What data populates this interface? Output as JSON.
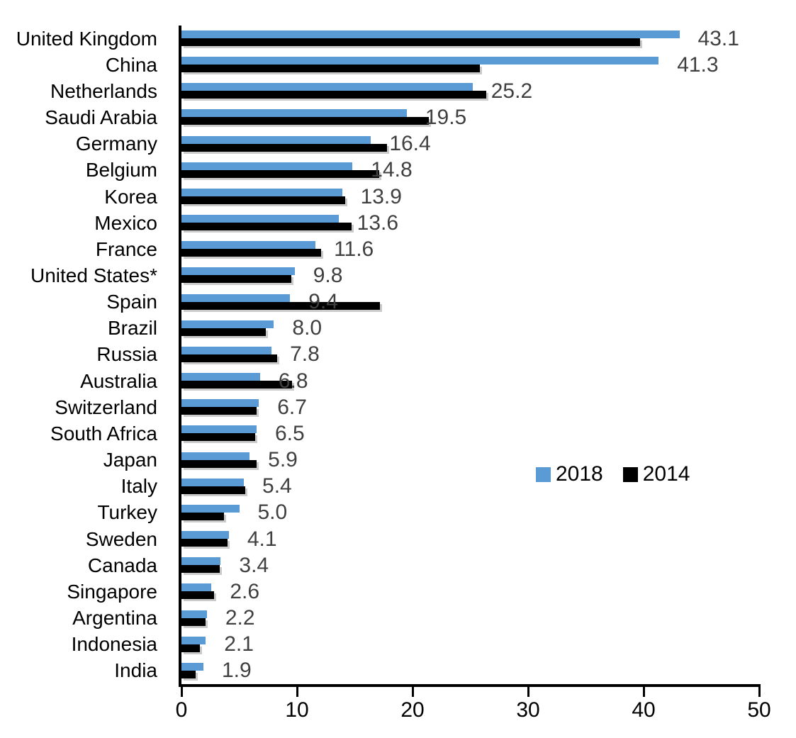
{
  "chart": {
    "colors": {
      "series_2018": "#5B9BD5",
      "series_2014": "#000000",
      "value_label": "#404040",
      "axis": "#000000",
      "text": "#000000",
      "background": "#ffffff"
    }
  },
  "chart_data": {
    "type": "bar",
    "orientation": "horizontal",
    "title": "",
    "xlabel": "",
    "ylabel": "",
    "categories": [
      "United Kingdom",
      "China",
      "Netherlands",
      "Saudi Arabia",
      "Germany",
      "Belgium",
      "Korea",
      "Mexico",
      "France",
      "United States*",
      "Spain",
      "Brazil",
      "Russia",
      "Australia",
      "Switzerland",
      "South Africa",
      "Japan",
      "Italy",
      "Turkey",
      "Sweden",
      "Canada",
      "Singapore",
      "Argentina",
      "Indonesia",
      "India"
    ],
    "series": [
      {
        "name": "2018",
        "color": "#5B9BD5",
        "values": [
          43.1,
          41.3,
          25.2,
          19.5,
          16.4,
          14.8,
          13.9,
          13.6,
          11.6,
          9.8,
          9.4,
          8.0,
          7.8,
          6.8,
          6.7,
          6.5,
          5.9,
          5.4,
          5.0,
          4.1,
          3.4,
          2.6,
          2.2,
          2.1,
          1.9
        ],
        "labels": [
          "43.1",
          "41.3",
          "25.2",
          "19.5",
          "16.4",
          "14.8",
          "13.9",
          "13.6",
          "11.6",
          "9.8",
          "9.4",
          "8.0",
          "7.8",
          "6.8",
          "6.7",
          "6.5",
          "5.9",
          "5.4",
          "5.0",
          "4.1",
          "3.4",
          "2.6",
          "2.2",
          "2.1",
          "1.9"
        ]
      },
      {
        "name": "2014",
        "color": "#000000",
        "values": [
          39.7,
          25.8,
          26.4,
          21.4,
          17.8,
          17.1,
          14.2,
          14.7,
          12.1,
          9.5,
          17.2,
          7.3,
          8.3,
          9.6,
          6.5,
          6.4,
          6.5,
          5.5,
          3.7,
          4.0,
          3.3,
          2.8,
          2.1,
          1.6,
          1.2
        ]
      }
    ],
    "value_labels_series": "2018",
    "xlim": [
      0,
      50
    ],
    "x_ticks": [
      "0",
      "10",
      "20",
      "30",
      "40",
      "50"
    ],
    "grid": false,
    "legend_position": "middle-right",
    "legend": [
      {
        "label": "2018",
        "color": "#5B9BD5"
      },
      {
        "label": "2014",
        "color": "#000000"
      }
    ]
  }
}
